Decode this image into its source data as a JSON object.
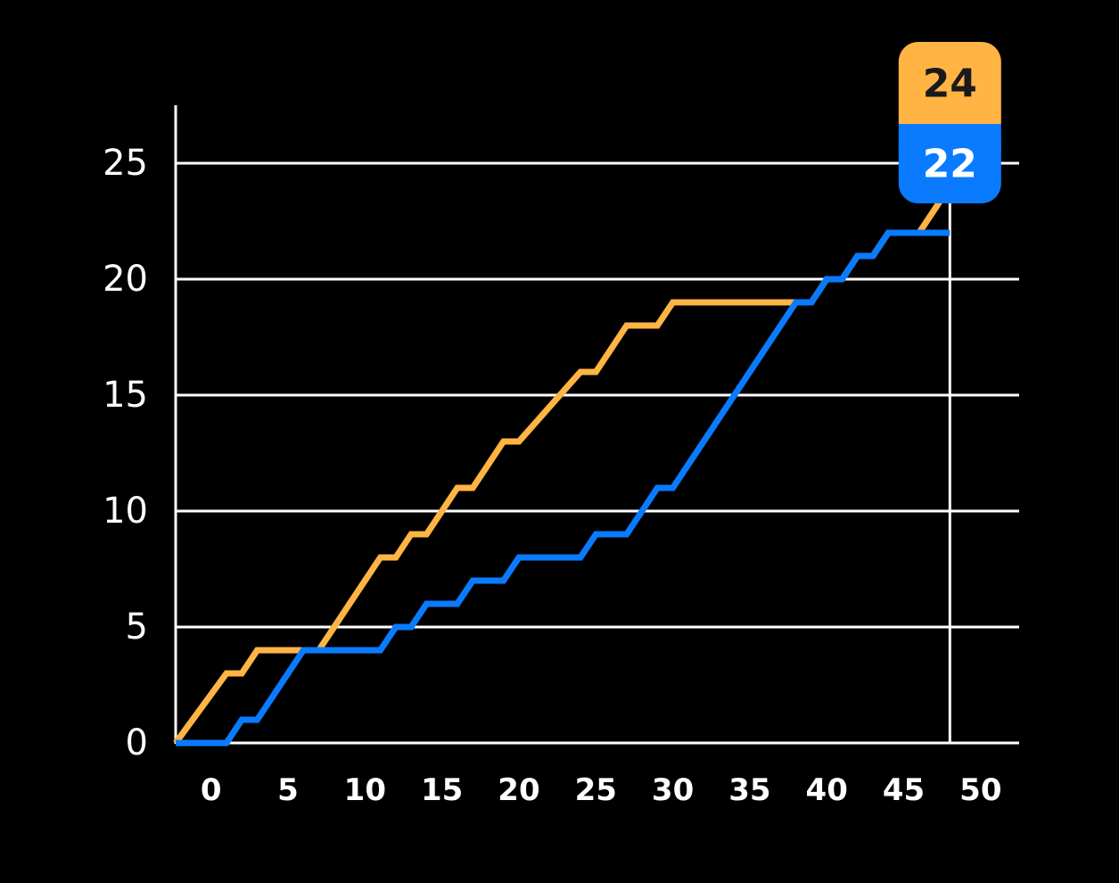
{
  "colors": {
    "background": "#000000",
    "grid": "#ffffff",
    "series_a": "#FFB444",
    "series_b": "#0A7BFF",
    "badge_a_text": "#1a1a1a",
    "badge_b_text": "#ffffff"
  },
  "tooltip": {
    "x": 48,
    "series_a_value": "24",
    "series_b_value": "22"
  },
  "chart_data": {
    "type": "line",
    "title": "",
    "xlabel": "",
    "ylabel": "",
    "xlim": [
      -2.3,
      52.5
    ],
    "ylim": [
      0,
      27.5
    ],
    "x_ticks": [
      "0",
      "5",
      "10",
      "15",
      "20",
      "25",
      "30",
      "35",
      "40",
      "45",
      "50"
    ],
    "y_ticks": [
      "0",
      "5",
      "10",
      "15",
      "20",
      "25"
    ],
    "grid": "horizontal",
    "legend": "none",
    "series": [
      {
        "color": "#FFB444",
        "points": [
          [
            -2.3,
            0
          ],
          [
            1,
            3
          ],
          [
            2,
            3
          ],
          [
            3,
            4
          ],
          [
            7,
            4
          ],
          [
            11,
            8
          ],
          [
            12,
            8
          ],
          [
            13,
            9
          ],
          [
            14,
            9
          ],
          [
            16,
            11
          ],
          [
            17,
            11
          ],
          [
            19,
            13
          ],
          [
            20,
            13
          ],
          [
            24,
            16
          ],
          [
            25,
            16
          ],
          [
            27,
            18
          ],
          [
            29,
            18
          ],
          [
            30,
            19
          ],
          [
            38,
            19
          ],
          [
            39,
            19
          ],
          [
            40,
            20
          ],
          [
            41,
            20
          ],
          [
            42,
            21
          ],
          [
            43,
            21
          ],
          [
            44,
            22
          ],
          [
            45,
            22
          ],
          [
            46,
            22
          ],
          [
            48,
            24
          ]
        ]
      },
      {
        "color": "#0A7BFF",
        "points": [
          [
            -2.3,
            0
          ],
          [
            1,
            0
          ],
          [
            2,
            1
          ],
          [
            3,
            1
          ],
          [
            6,
            4
          ],
          [
            11,
            4
          ],
          [
            12,
            5
          ],
          [
            13,
            5
          ],
          [
            14,
            6
          ],
          [
            16,
            6
          ],
          [
            17,
            7
          ],
          [
            19,
            7
          ],
          [
            20,
            8
          ],
          [
            24,
            8
          ],
          [
            25,
            9
          ],
          [
            27,
            9
          ],
          [
            29,
            11
          ],
          [
            30,
            11
          ],
          [
            38,
            19
          ],
          [
            39,
            19
          ],
          [
            40,
            20
          ],
          [
            41,
            20
          ],
          [
            42,
            21
          ],
          [
            43,
            21
          ],
          [
            44,
            22
          ],
          [
            48,
            22
          ]
        ]
      }
    ]
  }
}
